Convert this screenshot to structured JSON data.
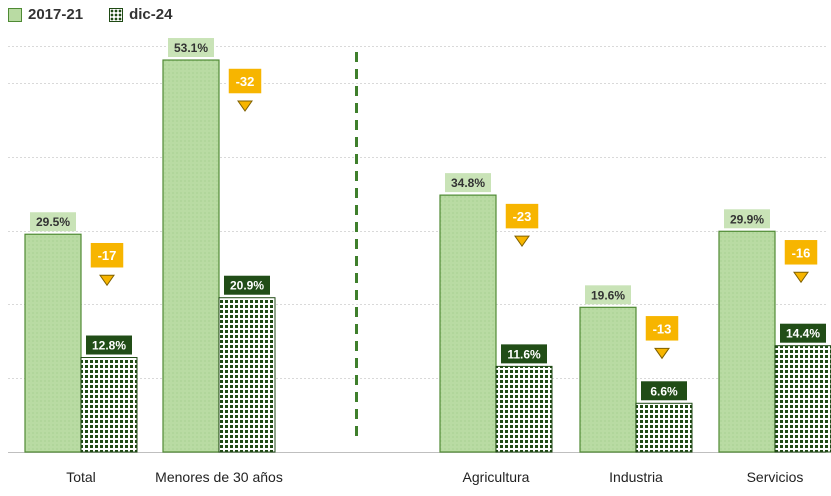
{
  "chart_data": {
    "type": "bar",
    "categories": [
      "Total",
      "Menores de 30 años",
      "Agricultura",
      "Industria",
      "Servicios"
    ],
    "series": [
      {
        "name": "2017-21",
        "values": [
          29.5,
          53.1,
          34.8,
          19.6,
          29.9
        ]
      },
      {
        "name": "dic-24",
        "values": [
          12.8,
          20.9,
          11.6,
          6.6,
          14.4
        ]
      }
    ],
    "value_labels": [
      [
        "29.5%",
        "53.1%",
        "34.8%",
        "19.6%",
        "29.9%"
      ],
      [
        "12.8%",
        "20.9%",
        "11.6%",
        "6.6%",
        "14.4%"
      ]
    ],
    "differences": [
      "-17",
      "-32",
      "-23",
      "-13",
      "-16"
    ],
    "ylim": [
      0,
      55
    ],
    "grid": true,
    "legend_position": "top-left",
    "separator_after_category": 1,
    "colors": {
      "series1_fill": "#b9dba3",
      "series1_border": "#4f8a34",
      "series2_dark": "#1f4a14",
      "label1_bg": "#c9e3b7",
      "label1_text": "#333333",
      "label2_bg": "#214d17",
      "label2_text": "#ffffff",
      "badge_bg": "#f7b500",
      "badge_text": "#ffffff",
      "separator": "#3f7f2c",
      "grid": "#d9d9d9"
    }
  }
}
